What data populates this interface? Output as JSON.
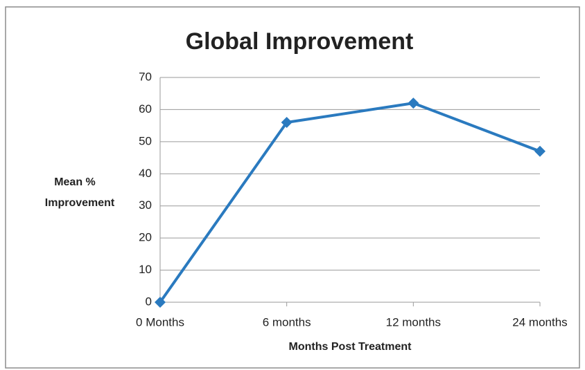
{
  "chart_data": {
    "type": "line",
    "title": "Global Improvement",
    "xlabel": "Months Post Treatment",
    "ylabel": [
      "Mean %",
      "Improvement"
    ],
    "categories": [
      "0 Months",
      "6 months",
      "12 months",
      "24 months"
    ],
    "values": [
      0,
      56,
      62,
      47
    ],
    "color": "#2a7abf",
    "ylim": [
      0,
      70
    ],
    "yticks": [
      0,
      10,
      20,
      30,
      40,
      50,
      60,
      70
    ],
    "grid": true
  }
}
